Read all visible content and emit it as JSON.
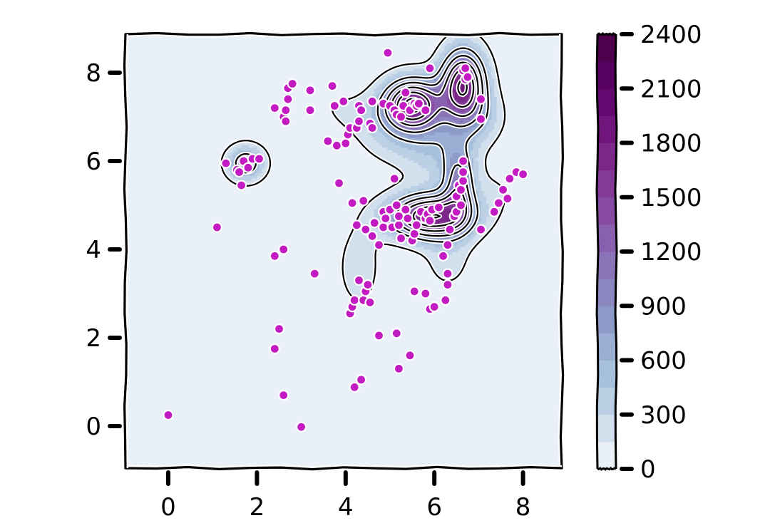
{
  "chart_data": {
    "type": "scatter",
    "subtype": "kde-filled-contour-with-scatter",
    "title": "",
    "xlabel": "",
    "ylabel": "",
    "xlim": [
      -1,
      9
    ],
    "ylim": [
      -0.9,
      8.9
    ],
    "grid": false,
    "style": "hand-drawn (xkcd)",
    "x_ticks": [
      "0",
      "2",
      "4",
      "6",
      "8"
    ],
    "y_ticks": [
      "0",
      "2",
      "4",
      "6",
      "8"
    ],
    "colorbar": {
      "colormap": "BuPu",
      "range": [
        0,
        2400
      ],
      "levels": [
        0,
        150,
        300,
        450,
        600,
        750,
        900,
        1050,
        1200,
        1350,
        1500,
        1650,
        1800,
        1950,
        2100,
        2250,
        2400
      ],
      "ticks": [
        "0",
        "300",
        "600",
        "900",
        "1200",
        "1500",
        "1800",
        "2100",
        "2400"
      ],
      "level_colors": [
        "#eaf0f7",
        "#d2e0ed",
        "#bcd0e5",
        "#a7c0dc",
        "#9aaed4",
        "#8e9bc9",
        "#8c87c0",
        "#8b73b7",
        "#8960ad",
        "#874ba3",
        "#833998",
        "#7b2689",
        "#6f157b",
        "#62086e",
        "#56005f",
        "#4d004b"
      ]
    },
    "marker_color": "#c21bc2",
    "kde_peaks": [
      {
        "x": 5.5,
        "y": 7.3,
        "level": 2100
      },
      {
        "x": 6.65,
        "y": 7.75,
        "level": 2100
      },
      {
        "x": 5.9,
        "y": 4.75,
        "level": 2100
      },
      {
        "x": 1.75,
        "y": 5.95,
        "level": 600
      }
    ],
    "points": [
      [
        0.0,
        0.25
      ],
      [
        3.0,
        -0.02
      ],
      [
        2.6,
        0.7
      ],
      [
        2.4,
        1.75
      ],
      [
        2.5,
        2.2
      ],
      [
        1.1,
        4.5
      ],
      [
        2.4,
        3.85
      ],
      [
        2.6,
        4.0
      ],
      [
        3.3,
        3.45
      ],
      [
        1.3,
        5.95
      ],
      [
        1.55,
        5.8
      ],
      [
        1.6,
        5.75
      ],
      [
        1.65,
        5.45
      ],
      [
        1.7,
        6.0
      ],
      [
        1.8,
        5.85
      ],
      [
        1.9,
        6.05
      ],
      [
        2.05,
        6.05
      ],
      [
        2.4,
        7.2
      ],
      [
        2.6,
        7.0
      ],
      [
        2.65,
        6.9
      ],
      [
        2.65,
        7.15
      ],
      [
        2.7,
        7.4
      ],
      [
        2.7,
        7.65
      ],
      [
        2.8,
        7.75
      ],
      [
        3.2,
        7.6
      ],
      [
        3.2,
        7.15
      ],
      [
        3.6,
        6.45
      ],
      [
        3.7,
        7.7
      ],
      [
        3.75,
        7.25
      ],
      [
        3.8,
        6.35
      ],
      [
        3.85,
        5.5
      ],
      [
        3.95,
        7.35
      ],
      [
        4.0,
        6.4
      ],
      [
        4.05,
        6.6
      ],
      [
        4.1,
        6.75
      ],
      [
        4.15,
        5.05
      ],
      [
        4.25,
        4.55
      ],
      [
        4.25,
        6.75
      ],
      [
        4.3,
        6.9
      ],
      [
        4.3,
        7.25
      ],
      [
        4.35,
        7.15
      ],
      [
        4.4,
        5.1
      ],
      [
        4.45,
        4.45
      ],
      [
        4.55,
        6.85
      ],
      [
        4.6,
        6.75
      ],
      [
        4.6,
        7.35
      ],
      [
        4.95,
        8.45
      ],
      [
        4.85,
        7.3
      ],
      [
        4.1,
        2.55
      ],
      [
        4.15,
        2.7
      ],
      [
        4.2,
        2.85
      ],
      [
        4.3,
        3.3
      ],
      [
        4.4,
        2.85
      ],
      [
        4.45,
        3.05
      ],
      [
        4.5,
        3.2
      ],
      [
        4.55,
        2.8
      ],
      [
        4.35,
        1.05
      ],
      [
        4.2,
        0.88
      ],
      [
        4.75,
        2.05
      ],
      [
        5.15,
        2.1
      ],
      [
        5.2,
        1.3
      ],
      [
        5.45,
        1.6
      ],
      [
        5.55,
        3.05
      ],
      [
        5.8,
        3.0
      ],
      [
        5.9,
        2.65
      ],
      [
        6.0,
        2.7
      ],
      [
        6.25,
        2.85
      ],
      [
        6.3,
        3.2
      ],
      [
        6.3,
        3.45
      ],
      [
        5.1,
        5.6
      ],
      [
        4.6,
        4.3
      ],
      [
        4.65,
        4.6
      ],
      [
        4.75,
        4.1
      ],
      [
        4.85,
        4.5
      ],
      [
        4.85,
        4.85
      ],
      [
        4.9,
        4.7
      ],
      [
        5.0,
        4.9
      ],
      [
        5.05,
        4.5
      ],
      [
        5.15,
        5.0
      ],
      [
        5.2,
        4.55
      ],
      [
        5.2,
        4.75
      ],
      [
        5.25,
        4.25
      ],
      [
        5.35,
        4.9
      ],
      [
        5.4,
        4.7
      ],
      [
        5.5,
        4.2
      ],
      [
        5.55,
        4.35
      ],
      [
        5.6,
        4.55
      ],
      [
        5.7,
        4.85
      ],
      [
        5.8,
        4.7
      ],
      [
        5.85,
        4.8
      ],
      [
        5.9,
        4.65
      ],
      [
        5.95,
        4.9
      ],
      [
        6.1,
        4.95
      ],
      [
        6.2,
        3.85
      ],
      [
        6.3,
        4.1
      ],
      [
        6.35,
        4.45
      ],
      [
        6.45,
        4.75
      ],
      [
        6.5,
        4.85
      ],
      [
        6.5,
        5.2
      ],
      [
        6.55,
        5.45
      ],
      [
        6.6,
        5.0
      ],
      [
        6.6,
        5.35
      ],
      [
        6.65,
        5.55
      ],
      [
        6.65,
        5.75
      ],
      [
        6.65,
        6.0
      ],
      [
        7.05,
        4.45
      ],
      [
        7.35,
        4.85
      ],
      [
        7.45,
        5.05
      ],
      [
        7.55,
        5.35
      ],
      [
        7.65,
        5.15
      ],
      [
        7.7,
        5.6
      ],
      [
        7.85,
        5.75
      ],
      [
        8.0,
        5.7
      ],
      [
        5.0,
        7.25
      ],
      [
        5.1,
        7.15
      ],
      [
        5.15,
        7.05
      ],
      [
        5.25,
        7.0
      ],
      [
        5.3,
        7.25
      ],
      [
        5.35,
        7.55
      ],
      [
        5.45,
        7.15
      ],
      [
        5.55,
        7.3
      ],
      [
        5.6,
        7.25
      ],
      [
        5.65,
        7.3
      ],
      [
        5.8,
        7.15
      ],
      [
        5.9,
        8.1
      ],
      [
        6.65,
        8.05
      ],
      [
        6.7,
        8.1
      ],
      [
        6.7,
        7.85
      ],
      [
        6.75,
        7.9
      ],
      [
        7.05,
        7.4
      ],
      [
        7.05,
        6.95
      ]
    ]
  }
}
